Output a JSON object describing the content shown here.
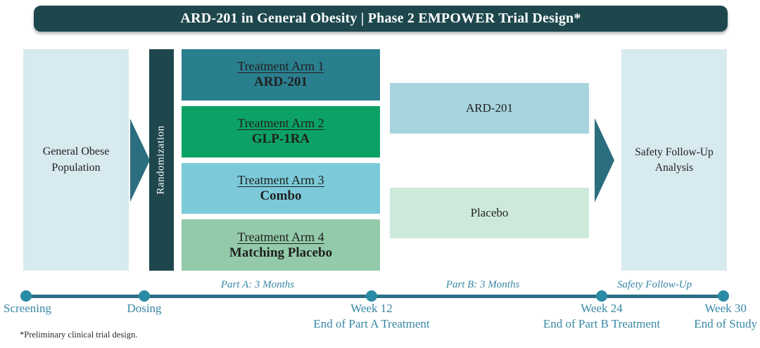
{
  "header": {
    "title": "ARD-201 in General Obesity | Phase 2 EMPOWER Trial Design*"
  },
  "flow": {
    "population": {
      "label": "General Obese Population"
    },
    "randomization": {
      "label": "Randomization"
    },
    "arms": [
      {
        "name": "Treatment Arm 1",
        "drug": "ARD-201",
        "color": "#2a7f8e"
      },
      {
        "name": "Treatment Arm 2",
        "drug": "GLP-1RA",
        "color": "#0ca265"
      },
      {
        "name": "Treatment Arm 3",
        "drug": "Combo",
        "color": "#7ccad9"
      },
      {
        "name": "Treatment Arm 4",
        "drug": "Matching Placebo",
        "color": "#93caaa"
      }
    ],
    "part_b": [
      {
        "label": "ARD-201",
        "color": "#a8d4de"
      },
      {
        "label": "Placebo",
        "color": "#cde9da"
      }
    ],
    "safety": {
      "label": "Safety Follow-Up Analysis"
    }
  },
  "timeline": {
    "phases": [
      {
        "label": "Part A: 3 Months"
      },
      {
        "label": "Part B: 3 Months"
      },
      {
        "label": "Safety Follow-Up"
      }
    ],
    "milestones": [
      {
        "label": "Screening",
        "sublabel": ""
      },
      {
        "label": "Dosing",
        "sublabel": ""
      },
      {
        "label": "Week 12",
        "sublabel": "End of Part A Treatment"
      },
      {
        "label": "Week 24",
        "sublabel": "End of Part B Treatment"
      },
      {
        "label": "Week 30",
        "sublabel": "End of Study"
      }
    ]
  },
  "footnote": "*Preliminary clinical trial design.",
  "colors": {
    "header_bg": "#1d474d",
    "banner_text": "#ffffff",
    "pale_box": "#d7eaef",
    "rand_bar": "#1d474d",
    "arrow": "#2b6e80",
    "timeline_line": "#2c7086",
    "timeline_dot": "#2a8ba4",
    "timeline_text": "#3787a3",
    "box_text": "#1f1f1f"
  }
}
